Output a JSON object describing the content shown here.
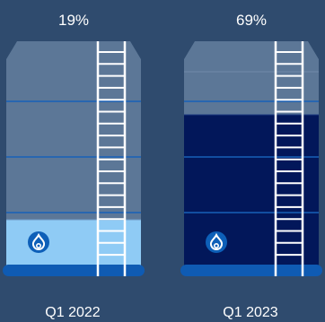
{
  "colors": {
    "background": "#2f4b6e",
    "tank_empty": "#5c7797",
    "tank_fill_light": "#8fcbf5",
    "tank_fill_dark": "#02175a",
    "level_line": "#1760b8",
    "base": "#0f5bb3",
    "ladder": "#ffffff",
    "flame_badge": "#0d5fb8"
  },
  "chart_data": {
    "type": "bar",
    "title": "",
    "xlabel": "",
    "ylabel": "",
    "ylim": [
      0,
      100
    ],
    "categories": [
      "Q1 2022",
      "Q1 2023"
    ],
    "values": [
      19,
      69
    ],
    "value_labels": [
      "19%",
      "69%"
    ],
    "fill_colors": [
      "#8fcbf5",
      "#02175a"
    ],
    "icon": "gas-flame-icon"
  }
}
